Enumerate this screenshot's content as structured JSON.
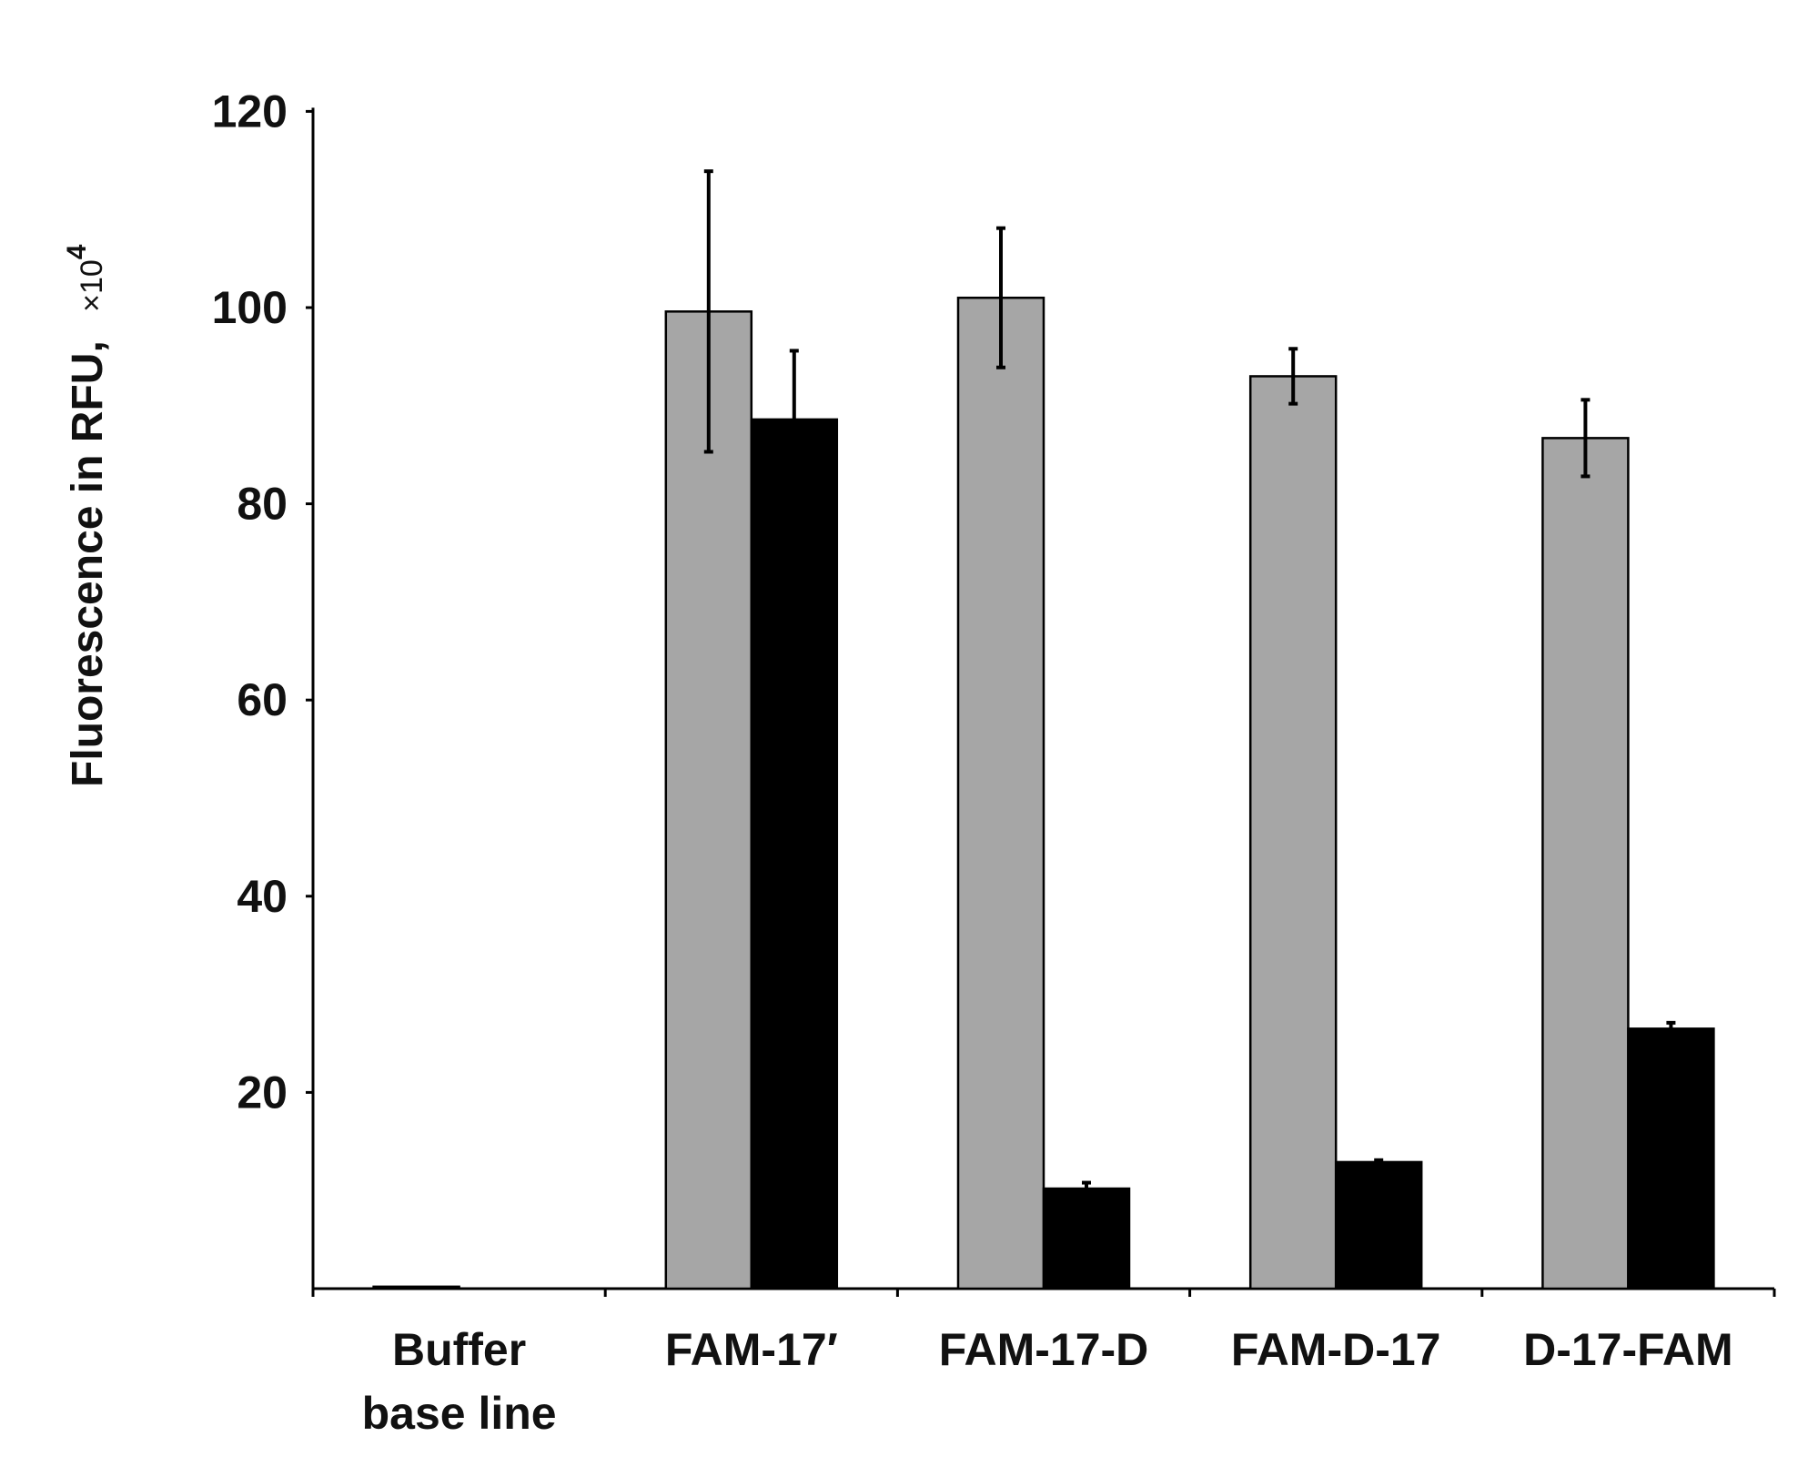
{
  "chart_data": {
    "type": "bar",
    "title": "",
    "xlabel": "",
    "ylabel": {
      "main": "Fluorescence in RFU,",
      "unit_prefix": "×10",
      "unit_exponent": "4"
    },
    "ylim": [
      0,
      120
    ],
    "yticks": [
      20,
      40,
      60,
      80,
      100,
      120
    ],
    "categories": [
      [
        "Buffer",
        "base line"
      ],
      [
        "FAM-17′"
      ],
      [
        "FAM-17-D"
      ],
      [
        "FAM-D-17"
      ],
      [
        "D-17-FAM"
      ]
    ],
    "series": [
      {
        "name": "gray",
        "color": "#a6a6a6",
        "values": [
          0.2,
          99.6,
          101.0,
          93.0,
          86.7
        ],
        "errors": [
          0,
          14.3,
          7.1,
          2.8,
          3.9
        ]
      },
      {
        "name": "black",
        "color": "#000000",
        "values": [
          0,
          88.6,
          10.2,
          12.9,
          26.5
        ],
        "errors": [
          0,
          7.0,
          0.6,
          0.2,
          0.6
        ]
      }
    ],
    "legend": "none",
    "grid": false
  }
}
